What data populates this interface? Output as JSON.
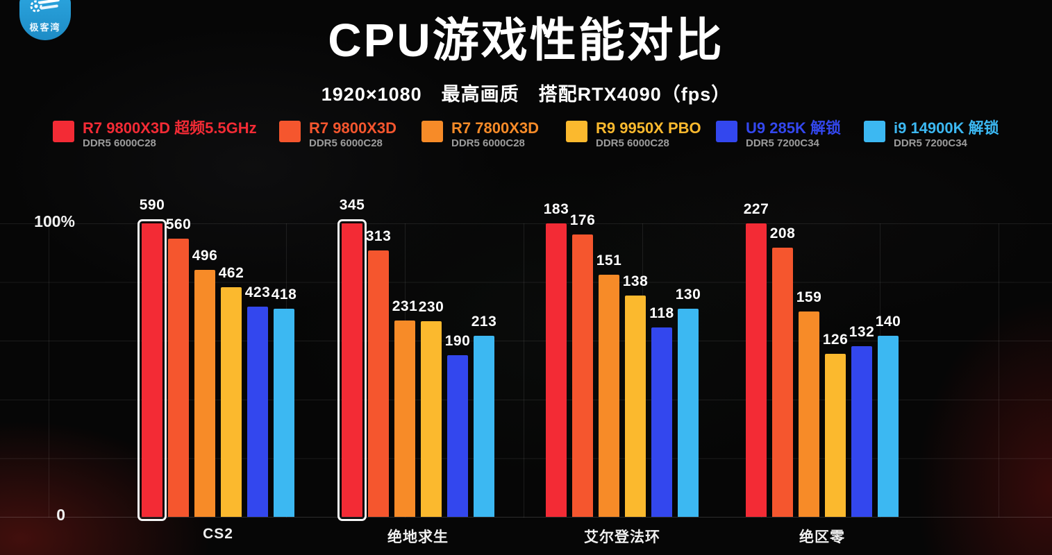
{
  "logo": {
    "text": "极客湾",
    "badge_color": "#2aa3dd"
  },
  "header": {
    "title": "CPU游戏性能对比",
    "subtitle": "1920×1080　最高画质　搭配RTX4090（fps）"
  },
  "axis": {
    "top_label": "100%",
    "bottom_label": "0"
  },
  "chart_data": {
    "type": "bar",
    "title": "CPU游戏性能对比",
    "subtitle": "1920×1080 最高画质 搭配RTX4090 (fps)",
    "unit": "fps",
    "categories": [
      "CS2",
      "绝地求生",
      "艾尔登法环",
      "绝区零"
    ],
    "series": [
      {
        "name": "R7 9800X3D 超频5.5GHz",
        "memory": "DDR5 6000C28",
        "color": "#f32b35",
        "values": [
          590,
          345,
          183,
          227
        ]
      },
      {
        "name": "R7 9800X3D",
        "memory": "DDR5 6000C28",
        "color": "#f5562e",
        "values": [
          560,
          313,
          176,
          208
        ]
      },
      {
        "name": "R7 7800X3D",
        "memory": "DDR5 6000C28",
        "color": "#f78b28",
        "values": [
          496,
          231,
          151,
          159
        ]
      },
      {
        "name": "R9 9950X PBO",
        "memory": "DDR5 6000C28",
        "color": "#fbb92e",
        "values": [
          462,
          230,
          138,
          126
        ]
      },
      {
        "name": "U9 285K 解锁",
        "memory": "DDR5 7200C34",
        "color": "#3347ee",
        "values": [
          423,
          190,
          118,
          132
        ]
      },
      {
        "name": "i9 14900K 解锁",
        "memory": "DDR5 7200C34",
        "color": "#3cb8f2",
        "values": [
          418,
          213,
          130,
          140
        ]
      }
    ],
    "normalization": "each game group scaled so its first (red) bar equals 100% height",
    "outlined_categories": [
      0,
      1
    ],
    "ylabels": [
      "100%",
      "0"
    ],
    "grid": true,
    "legend_position": "top"
  }
}
